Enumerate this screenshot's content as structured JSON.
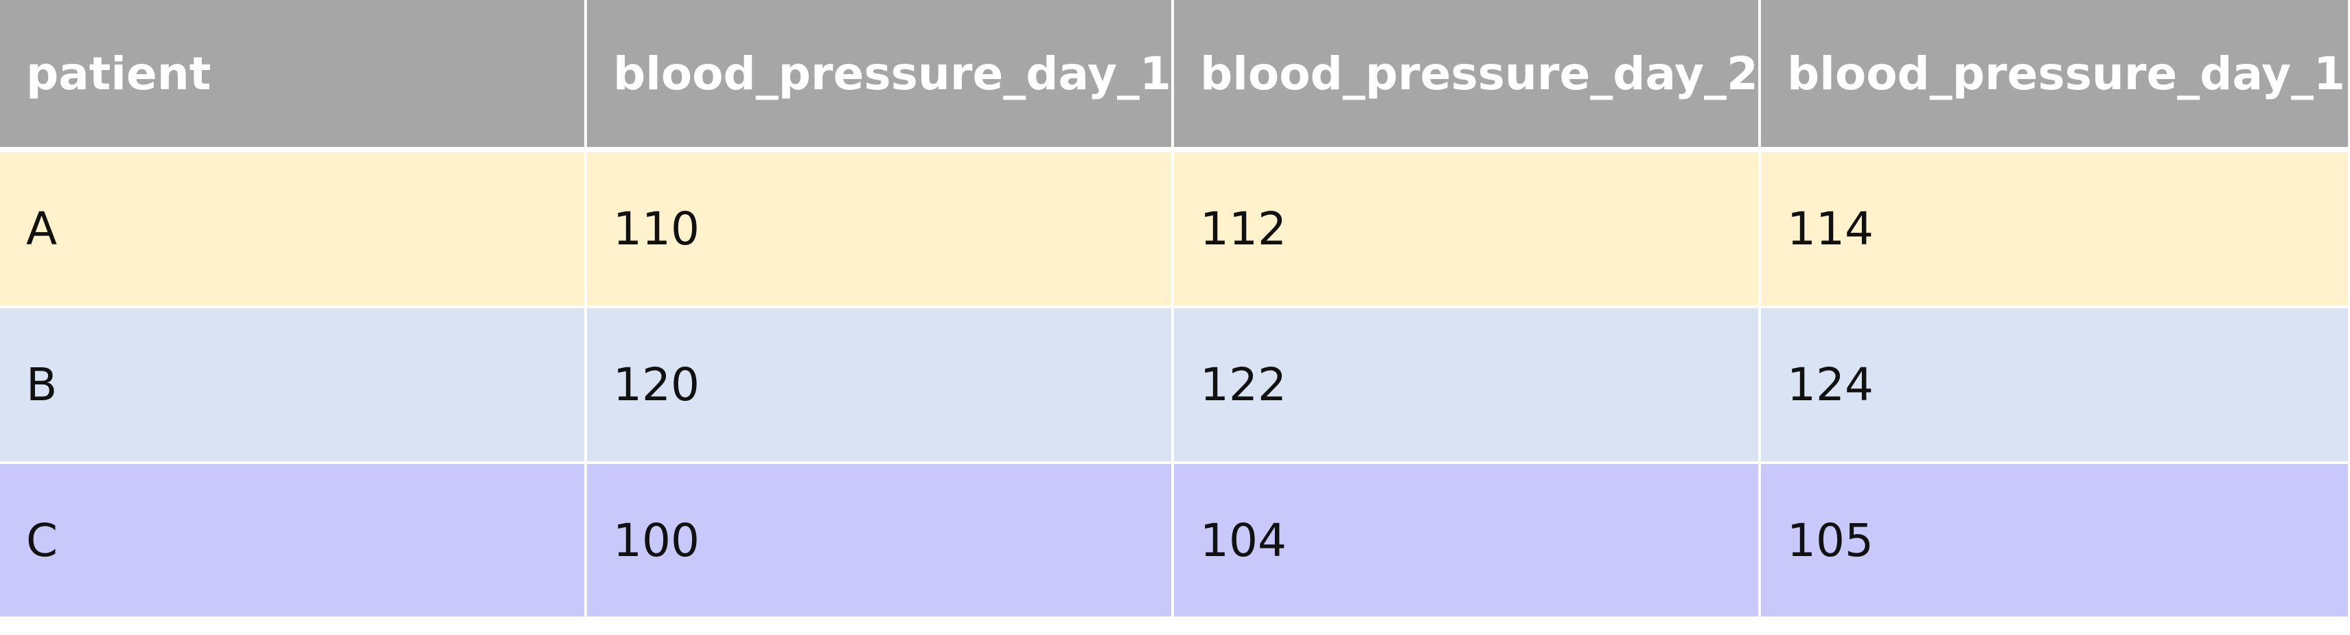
{
  "table": {
    "columns": [
      "patient",
      "blood_pressure_day_1",
      "blood_pressure_day_2",
      "blood_pressure_day_1"
    ],
    "rows": [
      {
        "cells": [
          "A",
          "110",
          "112",
          "114"
        ],
        "color": "#fff2cc"
      },
      {
        "cells": [
          "B",
          "120",
          "122",
          "124"
        ],
        "color": "#dae3f3"
      },
      {
        "cells": [
          "C",
          "100",
          "104",
          "105"
        ],
        "color": "#c9c8fb"
      }
    ],
    "header_color": "#a6a6a6"
  }
}
